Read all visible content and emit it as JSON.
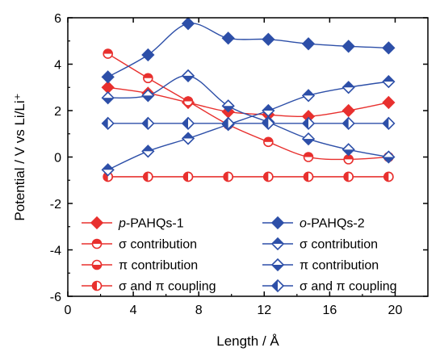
{
  "chart_data": {
    "type": "line",
    "xlabel": "Length / Å",
    "ylabel": "Potential / V vs Li/Li⁺",
    "xlim": [
      0,
      22
    ],
    "ylim": [
      -6,
      6
    ],
    "xticks": [
      "0",
      "4",
      "8",
      "12",
      "16",
      "20"
    ],
    "yticks": [
      "-6",
      "-4",
      "-2",
      "0",
      "2",
      "4",
      "6"
    ],
    "x": [
      2.45,
      4.9,
      7.35,
      9.8,
      12.25,
      14.7,
      17.15,
      19.6
    ],
    "colors": {
      "red": "#e8302e",
      "blue": "#2d4fa8"
    },
    "legend_position": "bottom",
    "series": [
      {
        "name": "p-PAHQs-1",
        "name_prefix": "p",
        "name_suffix": "-PAHQs-1",
        "color": "red",
        "marker": "filled-circle",
        "values": [
          3.0,
          2.75,
          2.35,
          1.95,
          1.82,
          1.75,
          2.0,
          2.35
        ]
      },
      {
        "name": "σ contribution",
        "color": "red",
        "marker": "circle-top-filled",
        "values": [
          4.45,
          3.4,
          2.4,
          1.4,
          0.65,
          0.0,
          -0.1,
          0.0
        ]
      },
      {
        "name": "π contribution",
        "color": "red",
        "marker": "circle-bottom-filled",
        "values": [
          -0.85,
          -0.85,
          -0.85,
          -0.85,
          -0.85,
          -0.85,
          -0.85,
          -0.85
        ]
      },
      {
        "name": "σ and π coupling",
        "color": "red",
        "marker": "circle-left-filled",
        "values": [
          -0.85,
          -0.85,
          -0.85,
          -0.85,
          -0.85,
          -0.85,
          -0.85,
          -0.85
        ]
      },
      {
        "name": "o-PAHQs-2",
        "name_prefix": "o",
        "name_suffix": "-PAHQs-2",
        "color": "blue",
        "marker": "filled-diamond",
        "values": [
          3.45,
          4.4,
          5.75,
          5.12,
          5.07,
          4.88,
          4.77,
          4.7
        ]
      },
      {
        "name": "σ contribution",
        "color": "blue",
        "marker": "diamond-top-filled",
        "values": [
          -0.55,
          0.25,
          0.8,
          1.4,
          2.0,
          2.65,
          3.0,
          3.25
        ]
      },
      {
        "name": "π contribution",
        "color": "blue",
        "marker": "diamond-bottom-filled",
        "values": [
          2.55,
          2.65,
          3.5,
          2.2,
          1.5,
          0.78,
          0.32,
          0.0
        ]
      },
      {
        "name": "σ and π coupling",
        "color": "blue",
        "marker": "diamond-left-filled",
        "values": [
          1.45,
          1.45,
          1.45,
          1.45,
          1.45,
          1.45,
          1.45,
          1.45
        ]
      }
    ]
  }
}
